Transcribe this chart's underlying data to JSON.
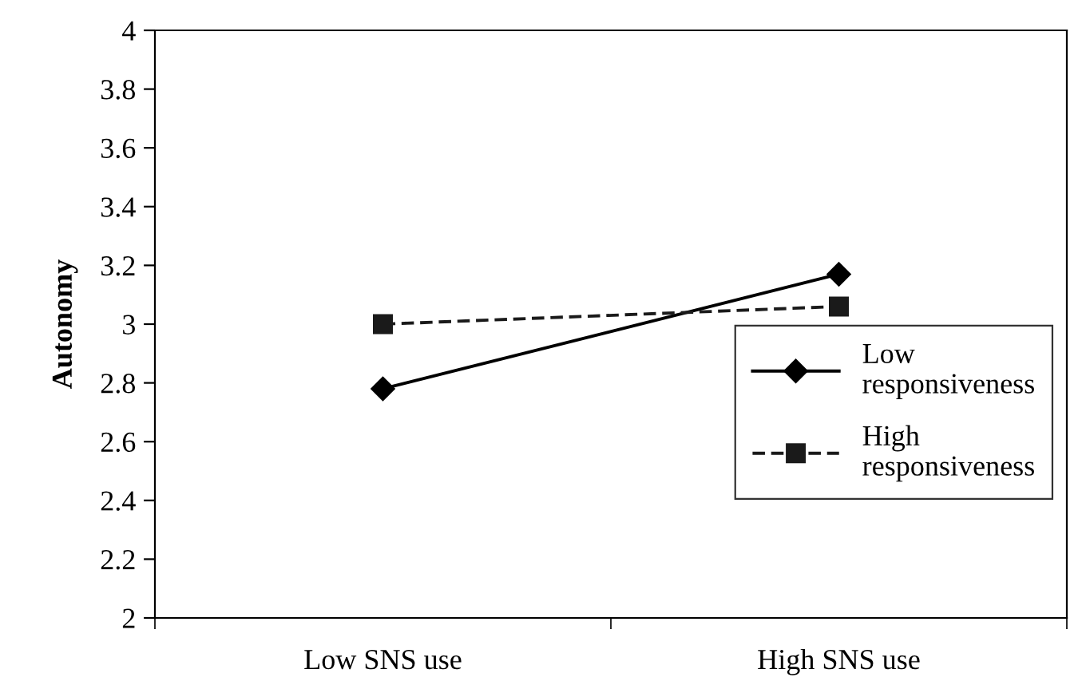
{
  "chart_data": {
    "type": "line",
    "ylabel": "Autonomy",
    "categories": [
      "Low SNS use",
      "High SNS use"
    ],
    "series": [
      {
        "name": "Low responsiveness",
        "color": "#000000",
        "values": [
          2.78,
          3.17
        ],
        "marker": "diamond",
        "line_style": "solid"
      },
      {
        "name": "High responsiveness",
        "color": "#1a1a1a",
        "values": [
          3.0,
          3.06
        ],
        "marker": "square",
        "line_style": "dashed"
      }
    ],
    "ylim": [
      2,
      4
    ],
    "yticks": [
      2,
      2.2,
      2.4,
      2.6,
      2.8,
      3,
      3.2,
      3.4,
      3.6,
      3.8,
      4
    ],
    "grid": false,
    "legend": "right"
  }
}
